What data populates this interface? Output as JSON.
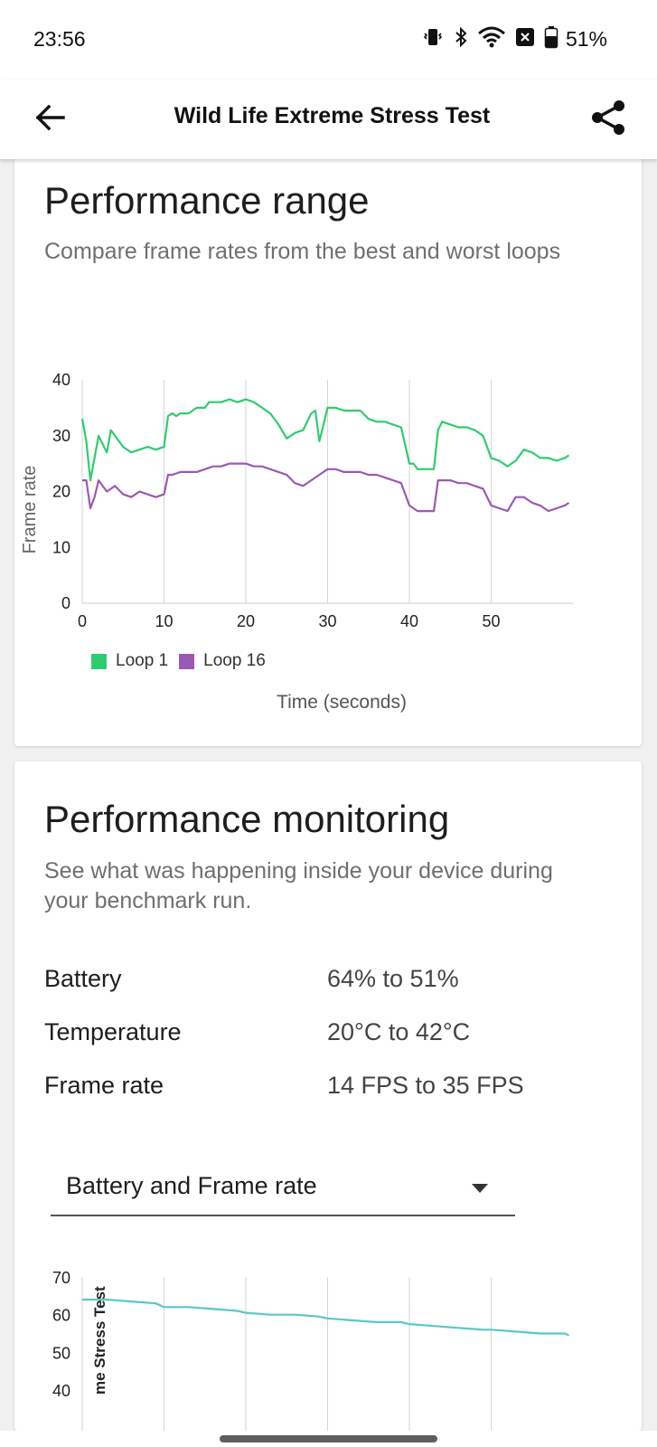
{
  "status_bar": {
    "time": "23:56",
    "battery_percent": "51%",
    "icons": [
      "vibrate-icon",
      "bluetooth-icon",
      "wifi-icon",
      "notification-icon",
      "battery-icon"
    ]
  },
  "app_bar": {
    "title": "Wild Life Extreme Stress Test",
    "back_icon": "arrow-left-icon",
    "share_icon": "share-icon"
  },
  "performance_range": {
    "title": "Performance range",
    "subtitle": "Compare frame rates from the best and worst loops",
    "legend": [
      {
        "label": "Loop 1",
        "color": "#2ecc71"
      },
      {
        "label": "Loop 16",
        "color": "#9b59b6"
      }
    ],
    "x_axis_title": "Time (seconds)",
    "y_axis_title": "Frame rate"
  },
  "chart_data": [
    {
      "type": "line",
      "title": "",
      "xlabel": "Time (seconds)",
      "ylabel": "Frame rate",
      "xlim": [
        0,
        60
      ],
      "ylim": [
        0,
        40
      ],
      "x_ticks": [
        "0",
        "10",
        "20",
        "30",
        "40",
        "50"
      ],
      "y_ticks": [
        "0",
        "10",
        "20",
        "30",
        "40"
      ],
      "grid": "vertical",
      "legend": "bottom-left",
      "series": [
        {
          "name": "Loop 1",
          "color": "#2ecc71",
          "x": [
            0,
            0.5,
            1,
            1.5,
            2,
            3,
            3.5,
            4,
            5,
            6,
            7,
            8,
            9,
            10,
            10.5,
            11,
            11.5,
            12,
            13,
            14,
            15,
            15.5,
            16,
            17,
            18,
            19,
            20,
            21,
            22,
            23,
            24,
            25,
            25.5,
            26,
            27,
            28,
            28.5,
            29,
            30,
            31,
            32,
            33,
            34,
            35,
            36,
            37,
            38,
            39,
            40,
            40.5,
            41,
            42,
            43,
            43.5,
            44,
            45,
            46,
            47,
            48,
            49,
            50,
            51,
            52,
            53,
            54,
            55,
            56,
            57,
            58,
            59,
            59.5
          ],
          "y": [
            33,
            29,
            22,
            26,
            30,
            27,
            31,
            30,
            28,
            27,
            27.5,
            28,
            27.5,
            28,
            33.5,
            34,
            33.5,
            34,
            34,
            35,
            35,
            36,
            36,
            36,
            36.5,
            36,
            36.5,
            36,
            35,
            34,
            32,
            29.5,
            30,
            30.5,
            31,
            34,
            34.5,
            29,
            35,
            35,
            34.5,
            34.5,
            34.5,
            33,
            32.5,
            32.5,
            32,
            31.5,
            25,
            25,
            24,
            24,
            24,
            31,
            32.5,
            32,
            31.5,
            31.5,
            31,
            30,
            26,
            25.5,
            24.5,
            25.5,
            27.5,
            27,
            26,
            26,
            25.5,
            26,
            26.5
          ]
        },
        {
          "name": "Loop 16",
          "color": "#9b59b6",
          "x": [
            0,
            0.5,
            1,
            1.5,
            2,
            3,
            4,
            5,
            6,
            7,
            8,
            9,
            10,
            10.5,
            11,
            12,
            13,
            14,
            15,
            16,
            17,
            18,
            19,
            20,
            21,
            22,
            23,
            24,
            25,
            26,
            27,
            28,
            29,
            30,
            31,
            32,
            33,
            34,
            35,
            36,
            37,
            38,
            39,
            40,
            40.5,
            41,
            42,
            43,
            43.5,
            44,
            45,
            46,
            47,
            48,
            49,
            50,
            51,
            52,
            53,
            54,
            55,
            56,
            57,
            58,
            59,
            59.5
          ],
          "y": [
            22,
            22,
            17,
            19,
            22,
            20,
            21,
            19.5,
            19,
            20,
            19.5,
            19,
            19.5,
            23,
            23,
            23.5,
            23.5,
            23.5,
            24,
            24.5,
            24.5,
            25,
            25,
            25,
            24.5,
            24.5,
            24,
            23.5,
            23,
            21.5,
            21,
            22,
            23,
            24,
            24,
            23.5,
            23.5,
            23.5,
            23,
            23,
            22.5,
            22,
            21.5,
            17.5,
            17,
            16.5,
            16.5,
            16.5,
            22,
            22,
            22,
            21.5,
            21.5,
            21,
            20.5,
            17.5,
            17,
            16.5,
            19,
            19,
            18,
            17.5,
            16.5,
            17,
            17.5,
            18
          ]
        }
      ]
    },
    {
      "type": "line",
      "title": "",
      "ylabel": "me Stress Test",
      "xlim": [
        0,
        60
      ],
      "ylim": [
        40,
        70
      ],
      "y_ticks": [
        "70",
        "60",
        "50",
        "40"
      ],
      "grid": "vertical",
      "series": [
        {
          "color": "#5cc6c6",
          "x": [
            0,
            3,
            6,
            9,
            10,
            13,
            16,
            19,
            20,
            23,
            26,
            29,
            30,
            33,
            36,
            39,
            40,
            43,
            46,
            49,
            50,
            53,
            56,
            59,
            59.5
          ],
          "y": [
            64,
            64,
            63.5,
            63,
            62,
            62,
            61.5,
            61,
            60.5,
            60,
            60,
            59.5,
            59,
            58.5,
            58,
            58,
            57.5,
            57,
            56.5,
            56,
            56,
            55.5,
            55,
            55,
            54.5
          ]
        }
      ]
    }
  ],
  "performance_monitoring": {
    "title": "Performance monitoring",
    "subtitle": "See what was happening inside your device during your benchmark run.",
    "metrics": [
      {
        "label": "Battery",
        "value": "64% to 51%"
      },
      {
        "label": "Temperature",
        "value": "20°C to 42°C"
      },
      {
        "label": "Frame rate",
        "value": "14 FPS to 35 FPS"
      }
    ],
    "dropdown": {
      "selected": "Battery and Frame rate"
    }
  }
}
